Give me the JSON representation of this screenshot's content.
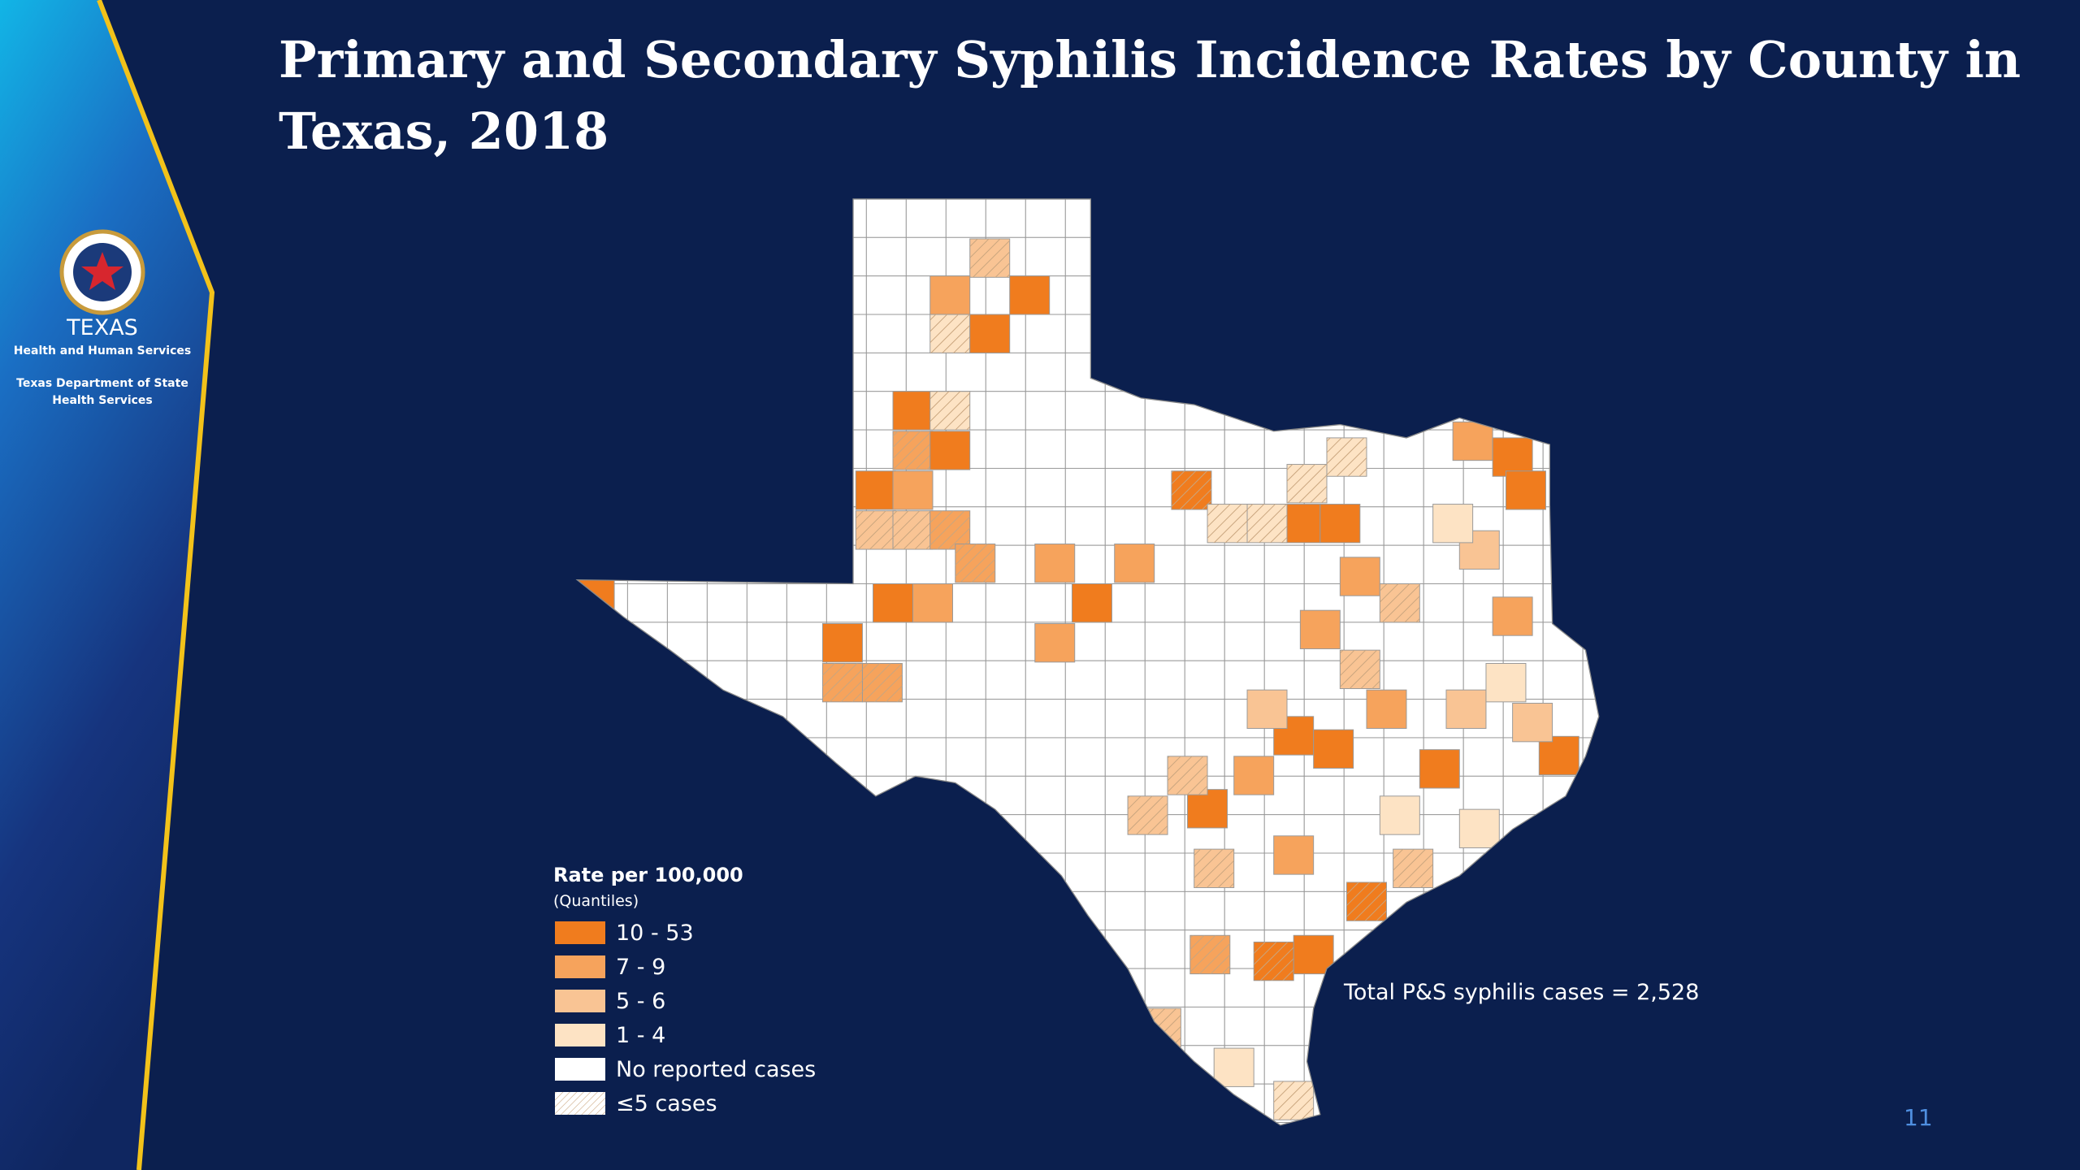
{
  "title": "Primary and Secondary Syphilis Incidence Rates by County in Texas, 2018",
  "logo": {
    "agency": "TEXAS",
    "agency_sub": "Health and Human Services",
    "department_line1": "Texas Department of State",
    "department_line2": "Health Services"
  },
  "legend": {
    "title": "Rate per 100,000",
    "subtitle": "(Quantiles)",
    "items": [
      "10 - 53",
      "7 - 9",
      "5 - 6",
      "1 - 4",
      "No reported cases",
      "≤5 cases"
    ]
  },
  "note": "Total P&S syphilis cases = 2,528",
  "page_number": "11"
}
